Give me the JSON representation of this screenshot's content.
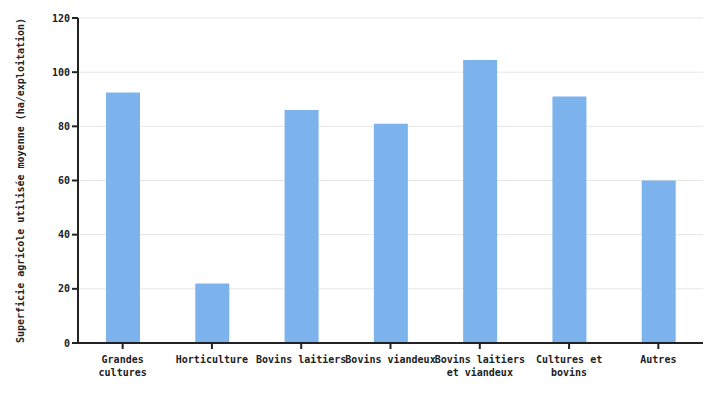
{
  "chart_data": {
    "type": "bar",
    "y_label": "Superficie agricole utilisée moyenne (ha/exploitation)",
    "categories": [
      "Grandes cultures",
      "Horticulture",
      "Bovins laitiers",
      "Bovins viandeux",
      "Bovins laitiers et viandeux",
      "Cultures et bovins",
      "Autres"
    ],
    "values": [
      92.5,
      22,
      86,
      81,
      104.5,
      91,
      60
    ],
    "color": "#7db3ec",
    "ylim": [
      0,
      120
    ],
    "yticks": [
      0,
      20,
      40,
      60,
      80,
      100,
      120
    ],
    "grid": true
  }
}
